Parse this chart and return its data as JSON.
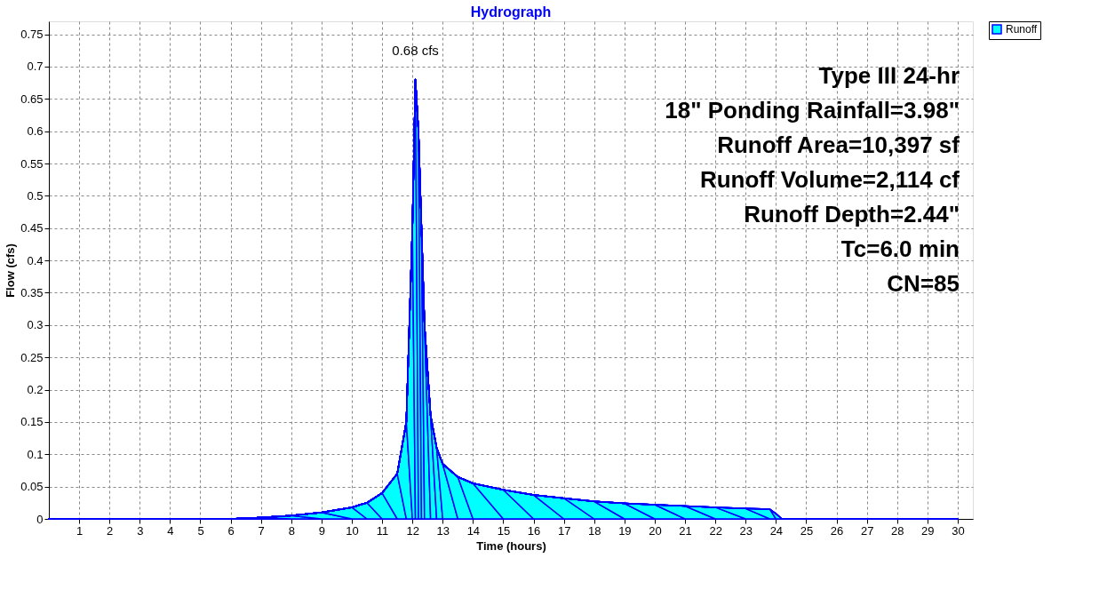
{
  "chart_data": {
    "type": "area",
    "title": "Hydrograph",
    "xlabel": "Time  (hours)",
    "ylabel": "Flow  (cfs)",
    "x": [
      0,
      6,
      7,
      8,
      9,
      10,
      10.5,
      11,
      11.5,
      11.8,
      12.0,
      12.1,
      12.2,
      12.3,
      12.4,
      12.6,
      12.8,
      13.0,
      13.5,
      14,
      15,
      16,
      17,
      18,
      19,
      20,
      21,
      22,
      23,
      23.8,
      24.0,
      24.2,
      25,
      30
    ],
    "series": [
      {
        "name": "Runoff",
        "color": "#00ffff",
        "values": [
          0,
          0,
          0.002,
          0.005,
          0.01,
          0.018,
          0.025,
          0.04,
          0.07,
          0.15,
          0.45,
          0.68,
          0.6,
          0.45,
          0.3,
          0.16,
          0.11,
          0.085,
          0.065,
          0.055,
          0.045,
          0.037,
          0.032,
          0.027,
          0.024,
          0.022,
          0.02,
          0.018,
          0.016,
          0.015,
          0.008,
          0,
          0,
          0
        ]
      }
    ],
    "xlim": [
      0,
      30.5
    ],
    "xticks": [
      1,
      2,
      3,
      4,
      5,
      6,
      7,
      8,
      9,
      10,
      11,
      12,
      13,
      14,
      15,
      16,
      17,
      18,
      19,
      20,
      21,
      22,
      23,
      24,
      25,
      26,
      27,
      28,
      29,
      30
    ],
    "ylim": [
      0,
      0.77
    ],
    "yticks": [
      0,
      0.05,
      0.1,
      0.15,
      0.2,
      0.25,
      0.3,
      0.35,
      0.4,
      0.45,
      0.5,
      0.55,
      0.6,
      0.65,
      0.7,
      0.75
    ],
    "grid": true,
    "legend": "right",
    "annotations": [
      {
        "text": "0.68 cfs",
        "x": 12.1,
        "y": 0.68
      },
      "Type III 24-hr",
      "18\" Ponding Rainfall=3.98\"",
      "Runoff Area=10,397 sf",
      "Runoff Volume=2,114 cf",
      "Runoff Depth=2.44\"",
      "Tc=6.0 min",
      "CN=85"
    ]
  }
}
